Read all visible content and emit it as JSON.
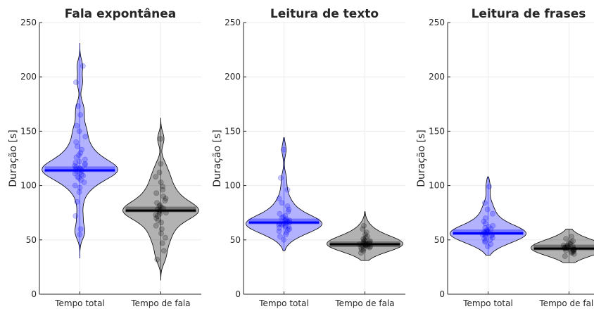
{
  "chart_data": [
    {
      "type": "violin",
      "title": "Fala expontânea",
      "ylabel": "Duração [s]",
      "xlabel": "",
      "ylim": [
        0,
        250
      ],
      "yticks": [
        0,
        50,
        100,
        150,
        200,
        250
      ],
      "grid": true,
      "categories": [
        "Tempo total",
        "Tempo de fala"
      ],
      "series": [
        {
          "category": "Tempo total",
          "color": "#0000ff",
          "mean": 115,
          "median": 114,
          "min": 33,
          "max": 231,
          "points": [
            55,
            60,
            72,
            85,
            94,
            98,
            100,
            103,
            105,
            107,
            108,
            109,
            110,
            111,
            112,
            113,
            114,
            115,
            115,
            116,
            117,
            118,
            119,
            120,
            121,
            122,
            124,
            126,
            128,
            130,
            133,
            136,
            140,
            145,
            150,
            155,
            165,
            173,
            195,
            210
          ]
        },
        {
          "category": "Tempo de fala",
          "color": "#000000",
          "mean": 78,
          "median": 77,
          "min": 13,
          "max": 162,
          "points": [
            32,
            40,
            47,
            52,
            56,
            60,
            63,
            66,
            68,
            70,
            72,
            73,
            74,
            75,
            76,
            77,
            78,
            79,
            80,
            81,
            82,
            84,
            86,
            88,
            90,
            93,
            96,
            99,
            103,
            108,
            112,
            120,
            143
          ]
        }
      ]
    },
    {
      "type": "violin",
      "title": "Leitura de texto",
      "ylabel": "Duração [s]",
      "xlabel": "",
      "ylim": [
        0,
        250
      ],
      "yticks": [
        0,
        50,
        100,
        150,
        200,
        250
      ],
      "grid": true,
      "categories": [
        "Tempo total",
        "Tempo de fala"
      ],
      "series": [
        {
          "category": "Tempo total",
          "color": "#0000ff",
          "mean": 67,
          "median": 66,
          "min": 40,
          "max": 144,
          "points": [
            50,
            53,
            55,
            57,
            58,
            59,
            60,
            61,
            62,
            62,
            63,
            64,
            64,
            65,
            65,
            66,
            66,
            67,
            68,
            68,
            69,
            70,
            71,
            72,
            74,
            76,
            78,
            81,
            84,
            88,
            96,
            107,
            133
          ]
        },
        {
          "category": "Tempo de fala",
          "color": "#000000",
          "mean": 46,
          "median": 46,
          "min": 31,
          "max": 76,
          "points": [
            38,
            40,
            41,
            42,
            43,
            43,
            44,
            44,
            45,
            45,
            45,
            46,
            46,
            46,
            47,
            47,
            47,
            48,
            48,
            49,
            49,
            50,
            51,
            52,
            53,
            55,
            57,
            60,
            63
          ]
        }
      ]
    },
    {
      "type": "violin",
      "title": "Leitura de frases",
      "ylabel": "Duração [s]",
      "xlabel": "",
      "ylim": [
        0,
        250
      ],
      "yticks": [
        0,
        50,
        100,
        150,
        200,
        250
      ],
      "grid": true,
      "categories": [
        "Tempo total",
        "Tempo de fala"
      ],
      "series": [
        {
          "category": "Tempo total",
          "color": "#0000ff",
          "mean": 57,
          "median": 56,
          "min": 36,
          "max": 108,
          "points": [
            44,
            46,
            48,
            49,
            50,
            51,
            52,
            53,
            54,
            54,
            55,
            55,
            56,
            56,
            57,
            57,
            58,
            58,
            59,
            60,
            61,
            62,
            63,
            65,
            67,
            70,
            74,
            78,
            84,
            99
          ]
        },
        {
          "category": "Tempo de fala",
          "color": "#000000",
          "mean": 43,
          "median": 42,
          "min": 29,
          "max": 60,
          "points": [
            35,
            37,
            38,
            39,
            39,
            40,
            40,
            41,
            41,
            42,
            42,
            42,
            43,
            43,
            43,
            44,
            44,
            45,
            45,
            46,
            47,
            48,
            49,
            51,
            53
          ]
        }
      ]
    }
  ]
}
